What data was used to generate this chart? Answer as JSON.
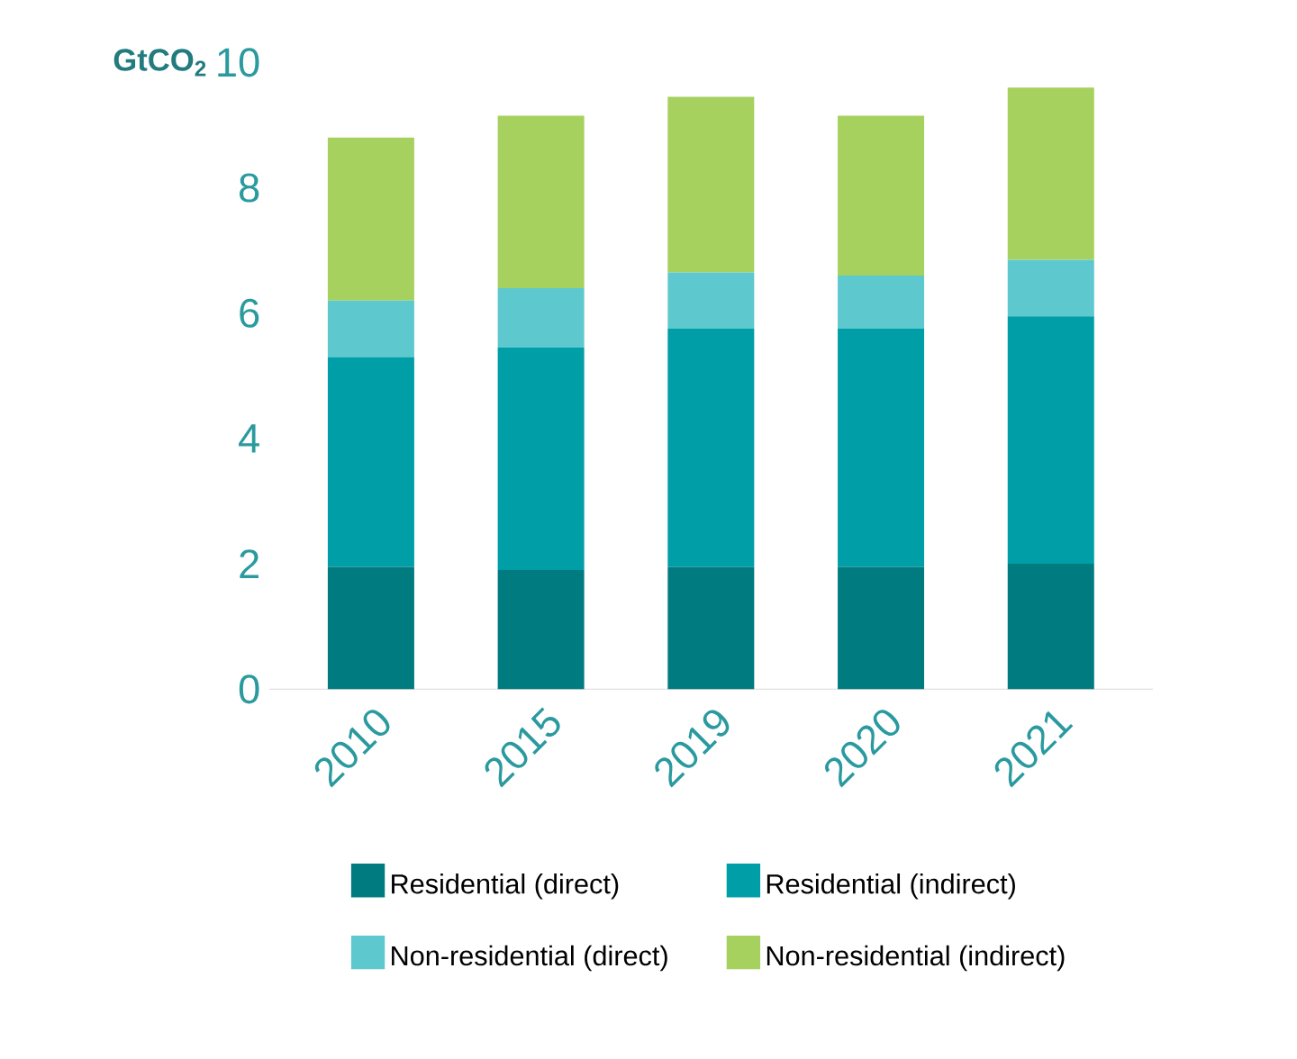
{
  "chart_data": {
    "type": "bar",
    "stacked": true,
    "ylabel": "GtCO$_{2}$",
    "categories": [
      "2010",
      "2015",
      "2019",
      "2020",
      "2021"
    ],
    "series": [
      {
        "name": "Residential (direct)",
        "color": "#007b80",
        "values": [
          1.95,
          1.9,
          1.95,
          1.95,
          2.0
        ]
      },
      {
        "name": "Residential (indirect)",
        "color": "#009ea6",
        "values": [
          3.35,
          3.55,
          3.8,
          3.8,
          3.95
        ]
      },
      {
        "name": "Non-residential (direct)",
        "color": "#5ec8cf",
        "values": [
          0.9,
          0.95,
          0.9,
          0.85,
          0.9
        ]
      },
      {
        "name": "Non-residential (indirect)",
        "color": "#a6d15f",
        "values": [
          2.6,
          2.75,
          2.8,
          2.55,
          2.75
        ]
      }
    ],
    "ylim": [
      0,
      10
    ],
    "yticks": [
      0,
      2,
      4,
      6,
      8,
      10
    ],
    "grid": false,
    "legend": "bottom"
  }
}
